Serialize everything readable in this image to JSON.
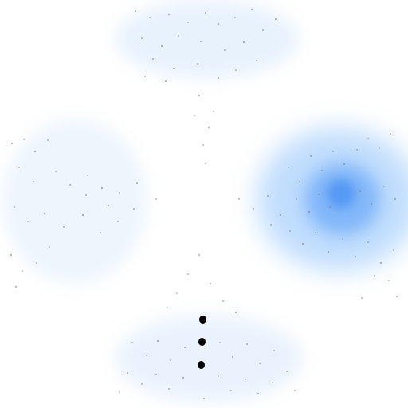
{
  "scene": {
    "background_color": "#ffffff",
    "particle_color": "#8a8a8a",
    "haze_color": "#d9e8fb",
    "focus_color": "#8ec0fb",
    "focus_core_color": "#4f98f5",
    "marker_color": "#000000"
  },
  "regions": [
    {
      "name": "top-nebula",
      "intensity": "faint"
    },
    {
      "name": "left-nebula",
      "intensity": "faint"
    },
    {
      "name": "right-nebula",
      "intensity": "strong"
    },
    {
      "name": "bottom-nebula",
      "intensity": "faint"
    }
  ],
  "markers": {
    "count": 3,
    "shape": "dot"
  }
}
